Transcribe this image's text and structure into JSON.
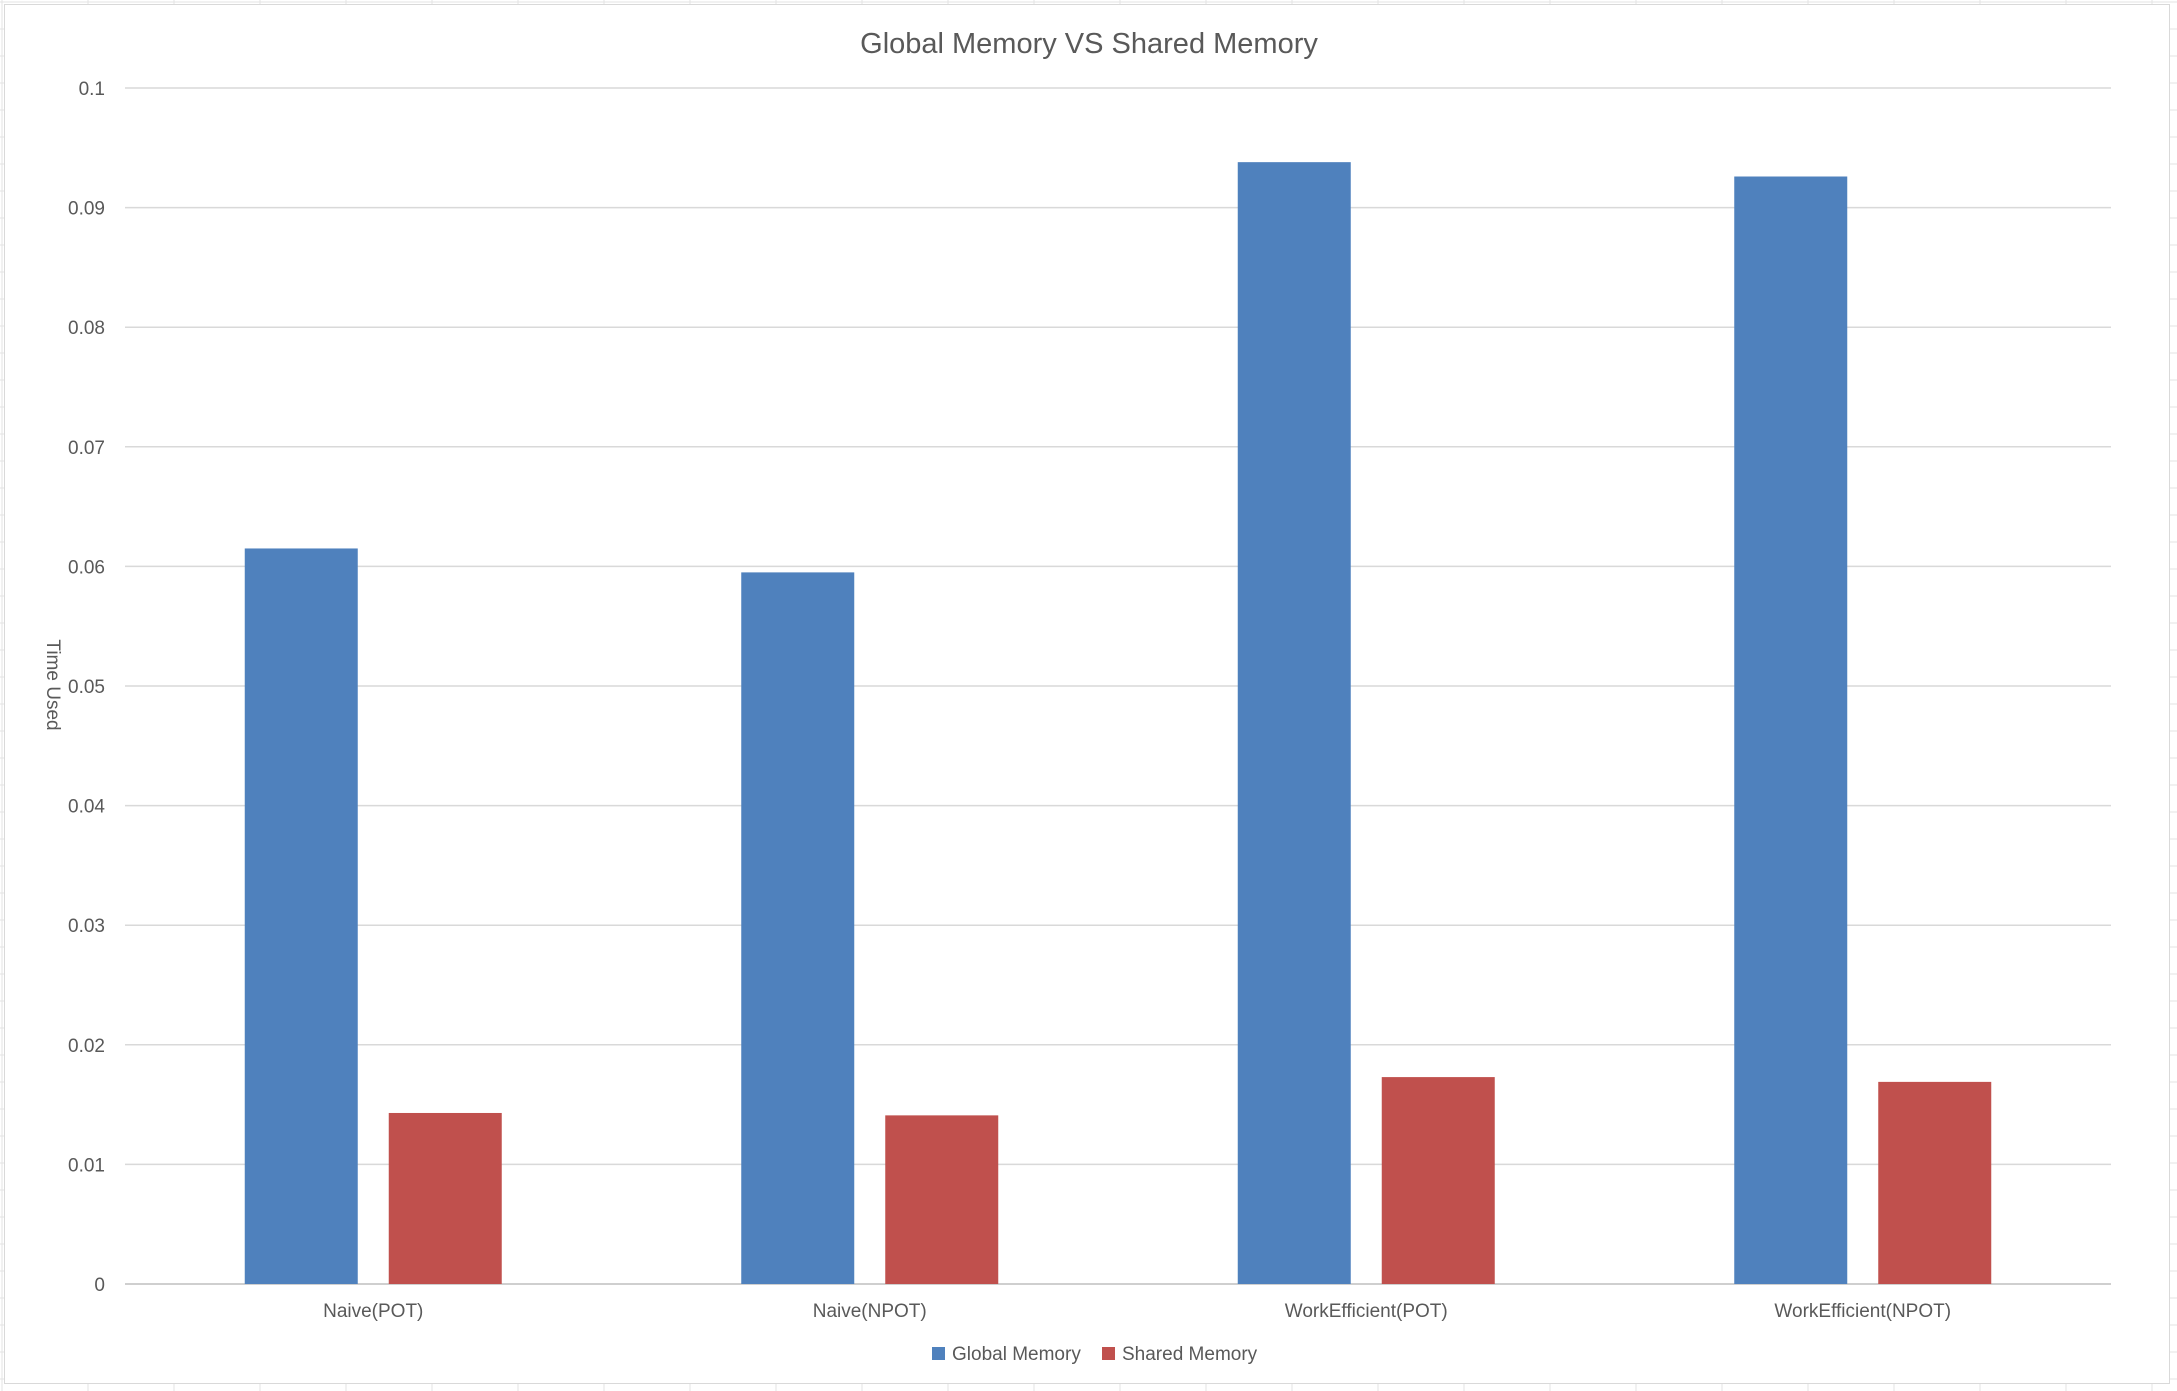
{
  "chart_data": {
    "type": "bar",
    "title": "Global Memory VS Shared Memory",
    "xlabel": "",
    "ylabel": "Time Used",
    "categories": [
      "Naive(POT)",
      "Naive(NPOT)",
      "WorkEfficient(POT)",
      "WorkEfficient(NPOT)"
    ],
    "series": [
      {
        "name": "Global Memory",
        "color": "#4f81bd",
        "values": [
          0.0615,
          0.0595,
          0.0938,
          0.0926
        ]
      },
      {
        "name": "Shared Memory",
        "color": "#c0504d",
        "values": [
          0.0143,
          0.0141,
          0.0173,
          0.0169
        ]
      }
    ],
    "ylim": [
      0,
      0.1
    ],
    "yticks": [
      "0",
      "0.01",
      "0.02",
      "0.03",
      "0.04",
      "0.05",
      "0.06",
      "0.07",
      "0.08",
      "0.09",
      "0.1"
    ],
    "grid": true,
    "legend": "bottom"
  }
}
